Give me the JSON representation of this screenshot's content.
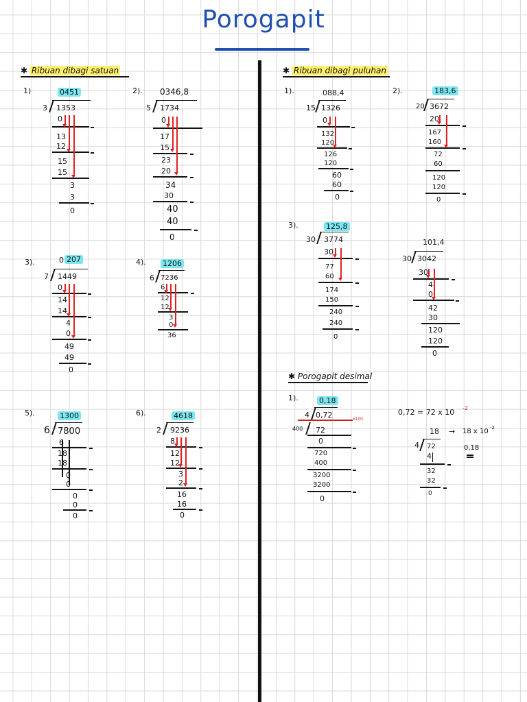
{
  "title": "Porogapit",
  "sections": {
    "ribuan_satuan": "Ribuan dibagi satuan",
    "ribuan_puluhan": "Ribuan dibagi puluhan",
    "desimal": "Porogapit desimal"
  },
  "p1": {
    "label": "1)",
    "quotient": "0451",
    "divisor": "3",
    "dividend": "1353",
    "steps": [
      "0",
      "13",
      "12",
      "15",
      "15",
      "3",
      "3",
      "0"
    ]
  },
  "p2": {
    "label": "2).",
    "quotient": "0346,8",
    "divisor": "5",
    "dividend": "1734",
    "steps": [
      "0",
      "17",
      "15",
      "23",
      "20",
      "34",
      "30",
      "40",
      "40",
      "0"
    ]
  },
  "p3": {
    "label": "3).",
    "quotient_a": "0",
    "quotient_b": "207",
    "divisor": "7",
    "dividend": "1449",
    "steps": [
      "0",
      "14",
      "14",
      "4",
      "0",
      "49",
      "49",
      "0"
    ]
  },
  "p4": {
    "label": "4).",
    "quotient": "1206",
    "divisor": "6",
    "dividend": "7236",
    "steps": [
      "6",
      "12",
      "12",
      "3",
      "0",
      "36"
    ]
  },
  "p5": {
    "label": "5).",
    "quotient": "1300",
    "divisor": "6",
    "dividend": "7800",
    "steps": [
      "6",
      "18",
      "18",
      "0",
      "0",
      "0",
      "0",
      "0"
    ]
  },
  "p6": {
    "label": "6).",
    "quotient": "4618",
    "divisor": "2",
    "dividend": "9236",
    "steps": [
      "8",
      "12",
      "12",
      "3",
      "2",
      "16",
      "16",
      "0"
    ]
  },
  "r1": {
    "label": "1).",
    "quotient": "088,4",
    "divisor": "15",
    "dividend": "1326",
    "steps": [
      "0",
      "132",
      "120",
      "126",
      "120",
      "60",
      "60",
      "0"
    ]
  },
  "r2": {
    "label": "2).",
    "quotient": "183,6",
    "divisor": "20",
    "dividend": "3672",
    "steps": [
      "20",
      "167",
      "160",
      "72",
      "60",
      "120",
      "120",
      "0"
    ]
  },
  "r3": {
    "label": "3).",
    "quotient": "125,8",
    "divisor": "30",
    "dividend": "3774",
    "steps": [
      "30",
      "77",
      "60",
      "174",
      "150",
      "240",
      "240",
      "0"
    ]
  },
  "r4": {
    "quotient": "101,4",
    "divisor": "30",
    "dividend": "3042",
    "steps": [
      "30",
      "4",
      "0",
      "42",
      "30",
      "120",
      "120",
      "0"
    ]
  },
  "d1": {
    "label": "1).",
    "quotient": "0,18",
    "divisor": "4",
    "dividend": "0,72",
    "scale": "x100",
    "side": "400",
    "inner": "72",
    "steps": [
      "0",
      "720",
      "400",
      "3200",
      "3200",
      "0"
    ]
  },
  "d2": {
    "equation": "0,72 = 72 x 10",
    "exp": "-2",
    "quotient": "18",
    "arrow_text": "18 x 10",
    "arrow_exp": "-2",
    "result": "0,18",
    "divisor": "4",
    "dividend": "72",
    "steps": [
      "4",
      "32",
      "32",
      "0"
    ]
  }
}
